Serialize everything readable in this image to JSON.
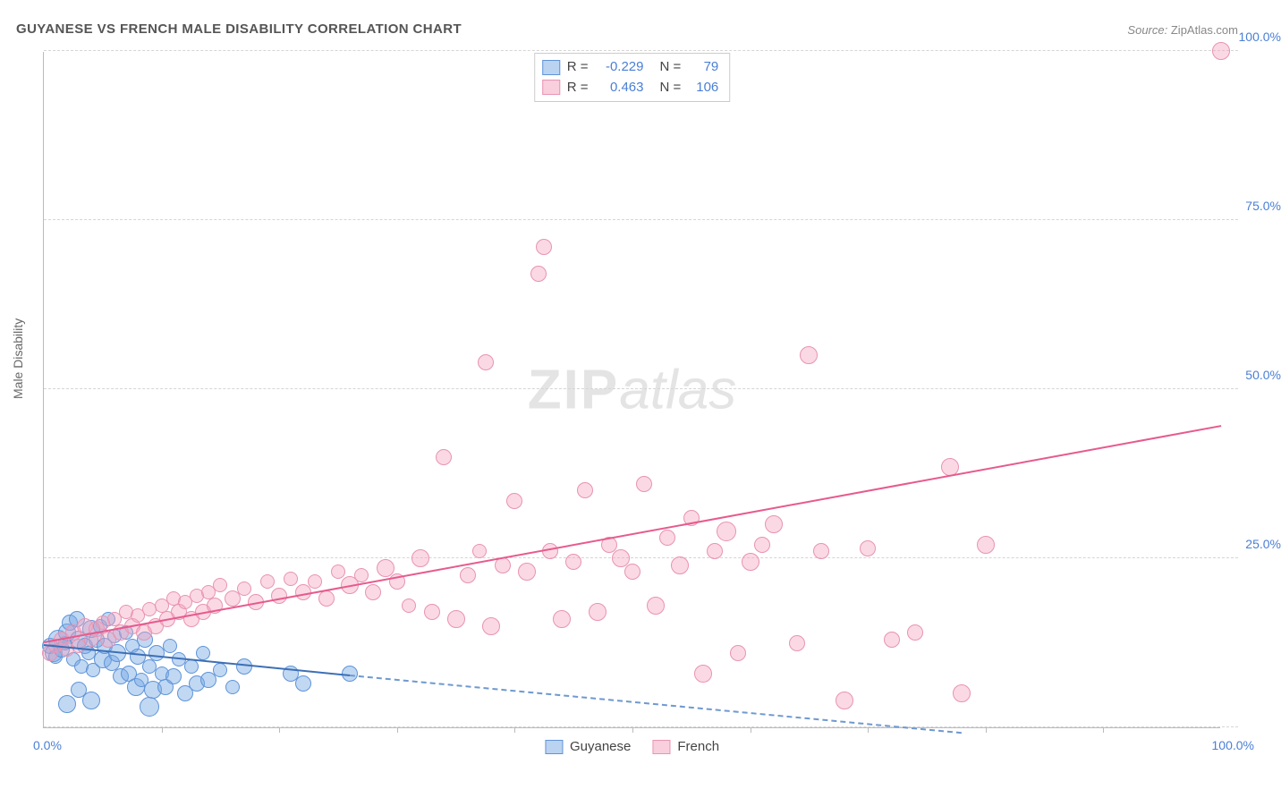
{
  "title": "GUYANESE VS FRENCH MALE DISABILITY CORRELATION CHART",
  "source_label": "Source:",
  "source_value": "ZipAtlas.com",
  "watermark_zip": "ZIP",
  "watermark_atlas": "atlas",
  "ylabel": "Male Disability",
  "chart": {
    "type": "scatter",
    "xlim": [
      0,
      100
    ],
    "ylim": [
      0,
      100
    ],
    "x_tick_step": 10,
    "y_gridlines": [
      0,
      25,
      50,
      75,
      100
    ],
    "y_tick_labels": [
      "25.0%",
      "50.0%",
      "75.0%",
      "100.0%"
    ],
    "y_tick_positions": [
      25,
      50,
      75,
      100
    ],
    "x_min_label": "0.0%",
    "x_max_label": "100.0%",
    "background_color": "#ffffff",
    "grid_color": "#d5d5d5",
    "axis_color": "#bbbbbb",
    "tick_label_color": "#4a7fd6",
    "marker_radius_min": 5,
    "marker_radius_max": 11,
    "series": [
      {
        "name": "Guyanese",
        "color_fill": "rgba(118,168,228,0.45)",
        "color_stroke": "#5f94d8",
        "R": "-0.229",
        "N": "79",
        "trend": {
          "x1": 0,
          "y1": 12.0,
          "x2": 26,
          "y2": 7.5,
          "color": "#3d6fb5",
          "width": 2.5,
          "dash": false
        },
        "trend_dash": {
          "x1": 26,
          "y1": 7.5,
          "x2": 78,
          "y2": -1.0,
          "color": "#6f99cf",
          "width": 2,
          "dash": true
        },
        "points": [
          [
            0.5,
            12,
            9
          ],
          [
            0.8,
            11,
            10
          ],
          [
            1.0,
            10.5,
            8
          ],
          [
            1.2,
            13,
            11
          ],
          [
            1.5,
            11.5,
            9
          ],
          [
            1.8,
            12.5,
            8
          ],
          [
            2,
            14,
            10
          ],
          [
            2.2,
            15.5,
            9
          ],
          [
            2.5,
            10,
            8
          ],
          [
            2.8,
            16,
            9
          ],
          [
            3,
            13,
            10
          ],
          [
            3.2,
            9,
            8
          ],
          [
            3.5,
            12,
            9
          ],
          [
            3.8,
            11,
            8
          ],
          [
            4,
            14.5,
            10
          ],
          [
            4.2,
            8.5,
            8
          ],
          [
            4.5,
            13,
            9
          ],
          [
            4.8,
            15,
            8
          ],
          [
            5,
            10,
            10
          ],
          [
            5.2,
            12,
            9
          ],
          [
            5.5,
            16,
            8
          ],
          [
            5.8,
            9.5,
            9
          ],
          [
            6,
            13.5,
            8
          ],
          [
            6.2,
            11,
            10
          ],
          [
            6.5,
            7.5,
            9
          ],
          [
            7,
            14,
            8
          ],
          [
            7.2,
            8,
            9
          ],
          [
            7.5,
            12,
            8
          ],
          [
            7.8,
            6,
            10
          ],
          [
            8,
            10.5,
            9
          ],
          [
            8.3,
            7,
            8
          ],
          [
            8.6,
            13,
            9
          ],
          [
            9,
            9,
            8
          ],
          [
            9.3,
            5.5,
            10
          ],
          [
            9.6,
            11,
            9
          ],
          [
            10,
            8,
            8
          ],
          [
            10.3,
            6,
            9
          ],
          [
            10.7,
            12,
            8
          ],
          [
            11,
            7.5,
            9
          ],
          [
            11.5,
            10,
            8
          ],
          [
            12,
            5,
            9
          ],
          [
            12.5,
            9,
            8
          ],
          [
            13,
            6.5,
            9
          ],
          [
            13.5,
            11,
            8
          ],
          [
            14,
            7,
            9
          ],
          [
            15,
            8.5,
            8
          ],
          [
            16,
            6,
            8
          ],
          [
            17,
            9,
            9
          ],
          [
            21,
            8,
            9
          ],
          [
            22,
            6.5,
            9
          ],
          [
            26,
            8,
            9
          ],
          [
            2,
            3.5,
            10
          ],
          [
            3,
            5.5,
            9
          ],
          [
            4,
            4,
            10
          ],
          [
            9,
            3,
            11
          ]
        ]
      },
      {
        "name": "French",
        "color_fill": "rgba(244,159,188,0.40)",
        "color_stroke": "#e893b2",
        "R": "0.463",
        "N": "106",
        "trend": {
          "x1": 0,
          "y1": 12.5,
          "x2": 100,
          "y2": 44.5,
          "color": "#e75a8d",
          "width": 2.5,
          "dash": false
        },
        "points": [
          [
            0.5,
            11,
            9
          ],
          [
            1,
            12,
            8
          ],
          [
            1.5,
            13,
            9
          ],
          [
            2,
            11.5,
            8
          ],
          [
            2.5,
            14,
            9
          ],
          [
            3,
            12,
            8
          ],
          [
            3.5,
            15,
            9
          ],
          [
            4,
            13,
            8
          ],
          [
            4.5,
            14.5,
            9
          ],
          [
            5,
            15.5,
            8
          ],
          [
            5.5,
            13,
            9
          ],
          [
            6,
            16,
            8
          ],
          [
            6.5,
            14,
            9
          ],
          [
            7,
            17,
            8
          ],
          [
            7.5,
            15,
            9
          ],
          [
            8,
            16.5,
            8
          ],
          [
            8.5,
            14,
            9
          ],
          [
            9,
            17.5,
            8
          ],
          [
            9.5,
            15,
            9
          ],
          [
            10,
            18,
            8
          ],
          [
            10.5,
            16,
            9
          ],
          [
            11,
            19,
            8
          ],
          [
            11.5,
            17,
            9
          ],
          [
            12,
            18.5,
            8
          ],
          [
            12.5,
            16,
            9
          ],
          [
            13,
            19.5,
            8
          ],
          [
            13.5,
            17,
            9
          ],
          [
            14,
            20,
            8
          ],
          [
            14.5,
            18,
            9
          ],
          [
            15,
            21,
            8
          ],
          [
            16,
            19,
            9
          ],
          [
            17,
            20.5,
            8
          ],
          [
            18,
            18.5,
            9
          ],
          [
            19,
            21.5,
            8
          ],
          [
            20,
            19.5,
            9
          ],
          [
            21,
            22,
            8
          ],
          [
            22,
            20,
            9
          ],
          [
            23,
            21.5,
            8
          ],
          [
            24,
            19,
            9
          ],
          [
            25,
            23,
            8
          ],
          [
            26,
            21,
            10
          ],
          [
            27,
            22.5,
            8
          ],
          [
            28,
            20,
            9
          ],
          [
            29,
            23.5,
            10
          ],
          [
            30,
            21.5,
            9
          ],
          [
            31,
            18,
            8
          ],
          [
            32,
            25,
            10
          ],
          [
            33,
            17,
            9
          ],
          [
            34,
            40,
            9
          ],
          [
            35,
            16,
            10
          ],
          [
            36,
            22.5,
            9
          ],
          [
            37,
            26,
            8
          ],
          [
            37.5,
            54,
            9
          ],
          [
            38,
            15,
            10
          ],
          [
            39,
            24,
            9
          ],
          [
            40,
            33.5,
            9
          ],
          [
            41,
            23,
            10
          ],
          [
            42,
            67,
            9
          ],
          [
            42.5,
            71,
            9
          ],
          [
            43,
            26,
            9
          ],
          [
            44,
            16,
            10
          ],
          [
            45,
            24.5,
            9
          ],
          [
            46,
            35,
            9
          ],
          [
            47,
            17,
            10
          ],
          [
            48,
            27,
            9
          ],
          [
            49,
            25,
            10
          ],
          [
            50,
            23,
            9
          ],
          [
            51,
            36,
            9
          ],
          [
            52,
            18,
            10
          ],
          [
            53,
            28,
            9
          ],
          [
            54,
            24,
            10
          ],
          [
            55,
            31,
            9
          ],
          [
            56,
            8,
            10
          ],
          [
            57,
            26,
            9
          ],
          [
            58,
            29,
            11
          ],
          [
            59,
            11,
            9
          ],
          [
            60,
            24.5,
            10
          ],
          [
            61,
            27,
            9
          ],
          [
            62,
            30,
            10
          ],
          [
            64,
            12.5,
            9
          ],
          [
            65,
            55,
            10
          ],
          [
            66,
            26,
            9
          ],
          [
            68,
            4,
            10
          ],
          [
            70,
            26.5,
            9
          ],
          [
            72,
            13,
            9
          ],
          [
            74,
            14,
            9
          ],
          [
            77,
            38.5,
            10
          ],
          [
            78,
            5,
            10
          ],
          [
            80,
            27,
            10
          ],
          [
            100,
            100,
            10
          ]
        ]
      }
    ]
  },
  "legend_top": {
    "rows": [
      {
        "sw": "blue",
        "R_label": "R =",
        "R": "-0.229",
        "N_label": "N =",
        "N": "79"
      },
      {
        "sw": "pink",
        "R_label": "R =",
        "R": "0.463",
        "N_label": "N =",
        "N": "106"
      }
    ]
  },
  "legend_bottom": {
    "items": [
      {
        "sw": "blue",
        "label": "Guyanese"
      },
      {
        "sw": "pink",
        "label": "French"
      }
    ]
  }
}
